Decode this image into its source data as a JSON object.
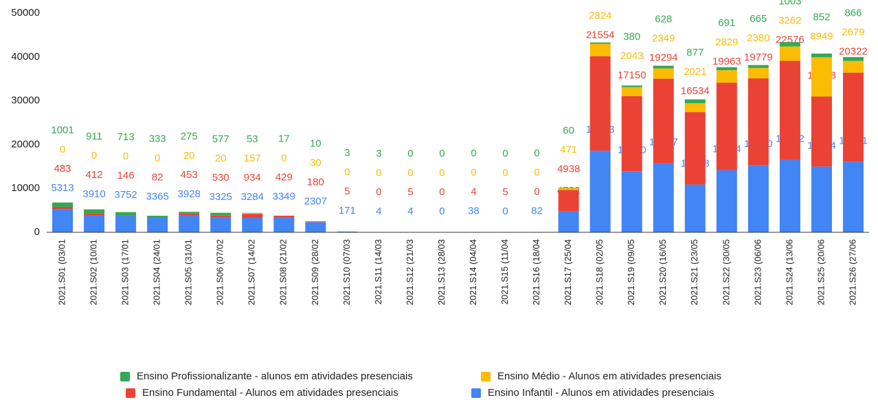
{
  "chart_data": {
    "type": "stacked_bar",
    "categories": [
      "2021.S01 (03/01",
      "2021.S02 (10/01",
      "2021.S03 (17/01",
      "2021.S04 (24/01",
      "2021.S05 (31/01",
      "2021.S06 (07/02",
      "2021.S07 (14/02",
      "2021.S08 (21/02",
      "2021.S09 (28/02",
      "2021.S10 (07/03",
      "2021.S11 (14/03",
      "2021.S12 (21/03",
      "2021.S13 (28/03",
      "2021.S14 (04/04",
      "2021.S15 (11/04",
      "2021.S16 (18/04",
      "2021.S17 (25/04",
      "2021.S18 (02/05",
      "2021.S19 (09/05",
      "2021.S20 (16/05",
      "2021.S21 (23/05",
      "2021.S22 (30/05",
      "2021.S23 (06/06",
      "2021.S24 (13/06",
      "2021.S25 (20/06",
      "2021.S26 (27/06"
    ],
    "series": [
      {
        "name": "Ensino Infantil - Alunos em atividades presenciais",
        "color": "#4285f4",
        "values": [
          5313,
          3910,
          3752,
          3365,
          3928,
          3325,
          3284,
          3349,
          2307,
          171,
          4,
          4,
          0,
          38,
          0,
          82,
          4732,
          18613,
          13910,
          15727,
          10878,
          14174,
          15320,
          16542,
          14994,
          16091
        ]
      },
      {
        "name": "Ensino Fundamental - Alunos em atividades presenciais",
        "color": "#ea4335",
        "values": [
          483,
          412,
          146,
          82,
          453,
          530,
          934,
          429,
          180,
          5,
          0,
          5,
          0,
          4,
          5,
          0,
          4938,
          21554,
          17150,
          19294,
          16534,
          19963,
          19779,
          22576,
          15968,
          20322
        ]
      },
      {
        "name": "Ensino Médio - Alunos em atividades presenciais",
        "color": "#fbbc04",
        "values": [
          0,
          0,
          0,
          0,
          20,
          20,
          157,
          0,
          30,
          0,
          0,
          0,
          0,
          0,
          0,
          0,
          471,
          2824,
          2043,
          2349,
          2021,
          2829,
          2380,
          3262,
          8949,
          2679
        ]
      },
      {
        "name": "Ensino Profissionalizante - alunos em atividades presenciais",
        "color": "#34a853",
        "values": [
          1001,
          911,
          713,
          333,
          275,
          577,
          53,
          17,
          10,
          3,
          3,
          0,
          0,
          0,
          0,
          0,
          60,
          300,
          380,
          628,
          877,
          691,
          665,
          1003,
          852,
          866
        ]
      }
    ],
    "ylim": [
      0,
      50000
    ],
    "yticks": [
      0,
      10000,
      20000,
      30000,
      40000,
      50000
    ],
    "grid": false
  }
}
